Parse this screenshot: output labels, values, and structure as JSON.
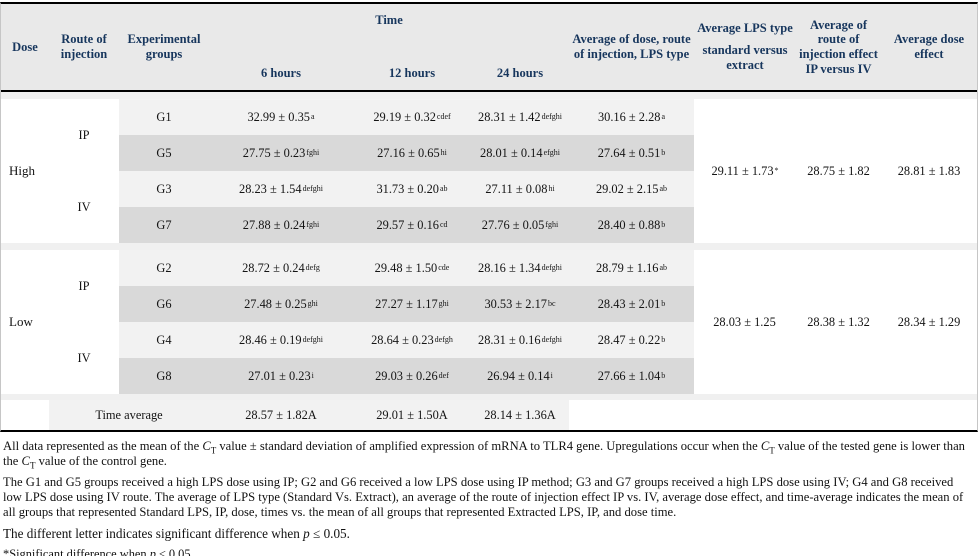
{
  "header": {
    "dose": "Dose",
    "route": "Route of injection",
    "groups": "Experimental groups",
    "time": "Time",
    "h6": "6 hours",
    "h12": "12 hours",
    "h24": "24 hours",
    "avg_block": "Average of dose, route of injection, LPS type",
    "avg_lps_line1": "Average LPS type",
    "avg_lps_line2": "standard versus extract",
    "avg_route": "Average of route of injection effect IP versus IV",
    "avg_dose": "Average dose effect"
  },
  "body": {
    "high": {
      "dose": "High",
      "ip": "IP",
      "iv": "IV",
      "rows": [
        {
          "g": "G1",
          "t6": {
            "v": "32.99 ± 0.35",
            "s": "a"
          },
          "t12": {
            "v": "29.19 ± 0.32",
            "s": "cdef"
          },
          "t24": {
            "v": "28.31 ± 1.42",
            "s": "defghi"
          },
          "avg": {
            "v": "30.16 ± 2.28",
            "s": "a"
          }
        },
        {
          "g": "G5",
          "t6": {
            "v": "27.75 ± 0.23",
            "s": "fghi"
          },
          "t12": {
            "v": "27.16 ± 0.65",
            "s": "hi"
          },
          "t24": {
            "v": "28.01 ± 0.14",
            "s": "efghi"
          },
          "avg": {
            "v": "27.64 ± 0.51",
            "s": "b"
          }
        },
        {
          "g": "G3",
          "t6": {
            "v": "28.23 ± 1.54",
            "s": "defghi"
          },
          "t12": {
            "v": "31.73 ± 0.20",
            "s": "ab"
          },
          "t24": {
            "v": "27.11 ± 0.08",
            "s": "hi"
          },
          "avg": {
            "v": "29.02 ± 2.15",
            "s": "ab"
          }
        },
        {
          "g": "G7",
          "t6": {
            "v": "27.88 ± 0.24",
            "s": "fghi"
          },
          "t12": {
            "v": "29.57 ± 0.16",
            "s": "cd"
          },
          "t24": {
            "v": "27.76 ± 0.05",
            "s": "fghi"
          },
          "avg": {
            "v": "28.40 ± 0.88",
            "s": "b"
          }
        }
      ],
      "avg_lps": {
        "v": "29.11 ± 1.73",
        "s": "*"
      },
      "avg_route": "28.75 ± 1.82",
      "avg_dose": "28.81 ± 1.83"
    },
    "low": {
      "dose": "Low",
      "ip": "IP",
      "iv": "IV",
      "rows": [
        {
          "g": "G2",
          "t6": {
            "v": "28.72 ± 0.24",
            "s": "defg"
          },
          "t12": {
            "v": "29.48 ± 1.50",
            "s": "cde"
          },
          "t24": {
            "v": "28.16 ± 1.34",
            "s": "defghi"
          },
          "avg": {
            "v": "28.79 ± 1.16",
            "s": "ab"
          }
        },
        {
          "g": "G6",
          "t6": {
            "v": "27.48 ± 0.25",
            "s": "ghi"
          },
          "t12": {
            "v": "27.27 ± 1.17",
            "s": "ghi"
          },
          "t24": {
            "v": "30.53 ± 2.17",
            "s": "bc"
          },
          "avg": {
            "v": "28.43 ± 2.01",
            "s": "b"
          }
        },
        {
          "g": "G4",
          "t6": {
            "v": "28.46 ± 0.19",
            "s": "defghi"
          },
          "t12": {
            "v": "28.64 ± 0.23",
            "s": "defgh"
          },
          "t24": {
            "v": "28.31 ± 0.16",
            "s": "defghi"
          },
          "avg": {
            "v": "28.47 ± 0.22",
            "s": "b"
          }
        },
        {
          "g": "G8",
          "t6": {
            "v": "27.01 ± 0.23",
            "s": "i"
          },
          "t12": {
            "v": "29.03 ± 0.26",
            "s": "def"
          },
          "t24": {
            "v": "26.94 ± 0.14",
            "s": "i"
          },
          "avg": {
            "v": "27.66 ± 1.04",
            "s": "b"
          }
        }
      ],
      "avg_lps": {
        "v": "28.03 ± 1.25",
        "s": ""
      },
      "avg_route": "28.38 ± 1.32",
      "avg_dose": "28.34 ± 1.29"
    },
    "time_average": {
      "label": "Time average",
      "h6": "28.57 ± 1.82A",
      "h12": "29.01 ± 1.50A",
      "h24": "28.14 ± 1.36A"
    }
  },
  "colors": {
    "header_text": "#17365d",
    "header_bg": "#e9e9e9",
    "row_light": "#f2f2f2",
    "row_dark": "#d9d9d9"
  },
  "footnotes": {
    "f1": [
      {
        "t": "All data represented as the mean of the "
      },
      {
        "t": "C",
        "style": "i"
      },
      {
        "t": "T",
        "style": "sub"
      },
      {
        "t": " value ± standard deviation of amplified expression of mRNA to TLR4 gene. Upregulations occur when the "
      },
      {
        "t": "C",
        "style": "i"
      },
      {
        "t": "T",
        "style": "sub"
      },
      {
        "t": " value of the tested gene is lower than the "
      },
      {
        "t": "C",
        "style": "i"
      },
      {
        "t": "T",
        "style": "sub"
      },
      {
        "t": " value of the control gene."
      }
    ],
    "f2": [
      {
        "t": "The G1 and G5 groups received a high LPS dose using IP; G2 and G6 received a low LPS dose using IP method; G3 and G7 groups received a high LPS dose using IV; G4 and G8 received low LPS dose using IV route. The average of LPS type (Standard Vs. Extract), an average of the route of injection effect IP vs. IV, average dose effect, and time-average indicates the mean of all groups that represented Standard LPS, IP, dose, times vs. the mean of all groups that represented Extracted LPS, IP, and dose time."
      }
    ],
    "f3": [
      {
        "t": "The different letter indicates significant difference when "
      },
      {
        "t": "p",
        "style": "i"
      },
      {
        "t": " ≤ 0.05."
      }
    ],
    "f4": [
      {
        "t": "*Significant difference when "
      },
      {
        "t": "p",
        "style": "i"
      },
      {
        "t": " ≤ 0.05."
      }
    ]
  }
}
